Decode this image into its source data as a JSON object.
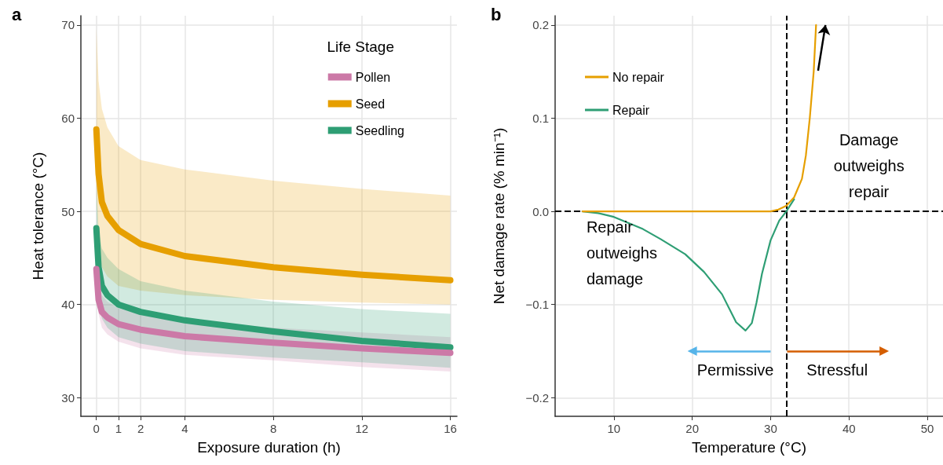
{
  "chart_data": [
    {
      "type": "line",
      "title": "a",
      "xlabel": "Exposure duration (h)",
      "ylabel": "Heat tolerance (°C)",
      "legend_title": "Life Stage",
      "x": [
        0,
        0.1,
        0.25,
        0.5,
        1,
        2,
        4,
        8,
        12,
        16
      ],
      "series": [
        {
          "name": "Pollen",
          "color": "#cc79a7",
          "values": [
            43.8,
            40.5,
            39.2,
            38.6,
            37.9,
            37.3,
            36.6,
            35.9,
            35.3,
            34.8
          ],
          "lower": [
            42,
            39,
            37.5,
            36.8,
            36,
            35.3,
            34.6,
            34,
            33.3,
            32.8
          ],
          "upper": [
            44,
            42,
            41,
            40.3,
            39.6,
            39,
            38.3,
            37.5,
            37,
            36.5
          ]
        },
        {
          "name": "Seed",
          "color": "#e69f00",
          "values": [
            58.8,
            54,
            51,
            49.5,
            48,
            46.5,
            45.2,
            44,
            43.2,
            42.6
          ],
          "lower": [
            52,
            46,
            44,
            43,
            42,
            41.5,
            41,
            40.5,
            40.2,
            40
          ],
          "upper": [
            69.7,
            64,
            61,
            59,
            57,
            55.5,
            54.5,
            53.3,
            52.4,
            51.7
          ]
        },
        {
          "name": "Seedling",
          "color": "#2e9e74",
          "values": [
            48.2,
            44,
            42,
            41,
            40,
            39.2,
            38.3,
            37.1,
            36.1,
            35.4
          ],
          "lower": [
            44,
            40,
            38.5,
            37.5,
            36.5,
            35.8,
            35,
            34.3,
            33.8,
            33.2
          ],
          "upper": [
            53,
            48,
            46,
            45,
            43.8,
            42.5,
            41.5,
            40.3,
            39.5,
            39
          ]
        }
      ],
      "xlim": [
        -0.7,
        16.3
      ],
      "ylim": [
        28,
        71
      ],
      "xticks": [
        0,
        1,
        2,
        4,
        8,
        12,
        16
      ],
      "yticks": [
        30,
        40,
        50,
        60,
        70
      ],
      "grid": true,
      "legend": "top right",
      "marker": "none"
    },
    {
      "type": "line",
      "title": "b",
      "xlabel": "Temperature (°C)",
      "ylabel": "Net damage rate (% min⁻¹)",
      "series": [
        {
          "name": "No repair",
          "color": "#e69f00",
          "x": [
            6,
            10,
            20,
            28,
            30,
            31,
            32,
            33,
            34,
            34.5,
            35,
            35.5,
            35.8
          ],
          "values": [
            0,
            0,
            0,
            0,
            0,
            0.002,
            0.006,
            0.015,
            0.035,
            0.06,
            0.1,
            0.15,
            0.2
          ]
        },
        {
          "name": "Repair",
          "color": "#2e9e74",
          "x": [
            6,
            8,
            10,
            13.7,
            16,
            19.1,
            21.5,
            23.8,
            25.6,
            26.8,
            27.6,
            28.2,
            28.9,
            30,
            31.1,
            32,
            33
          ],
          "values": [
            0,
            -0.002,
            -0.006,
            -0.019,
            -0.03,
            -0.046,
            -0.065,
            -0.089,
            -0.119,
            -0.128,
            -0.12,
            -0.098,
            -0.067,
            -0.031,
            -0.01,
            0,
            0.013
          ]
        }
      ],
      "ref_lines": [
        {
          "axis": "y",
          "value": 0,
          "color": "#000000",
          "line_style": "dashed"
        },
        {
          "axis": "x",
          "value": 32,
          "color": "#000000",
          "line_style": "dashed"
        }
      ],
      "annotations": [
        "Repair outweighs damage",
        "Damage outweighs repair",
        "Permissive",
        "Stressful"
      ],
      "xlim": [
        2.5,
        52
      ],
      "ylim": [
        -0.22,
        0.21
      ],
      "xticks": [
        10,
        20,
        30,
        40,
        50
      ],
      "yticks": [
        -0.2,
        -0.1,
        {
          "value": 0,
          "label": "0.0"
        },
        0.1,
        0.2
      ],
      "grid": true,
      "legend": "top left",
      "marker": "none"
    }
  ]
}
